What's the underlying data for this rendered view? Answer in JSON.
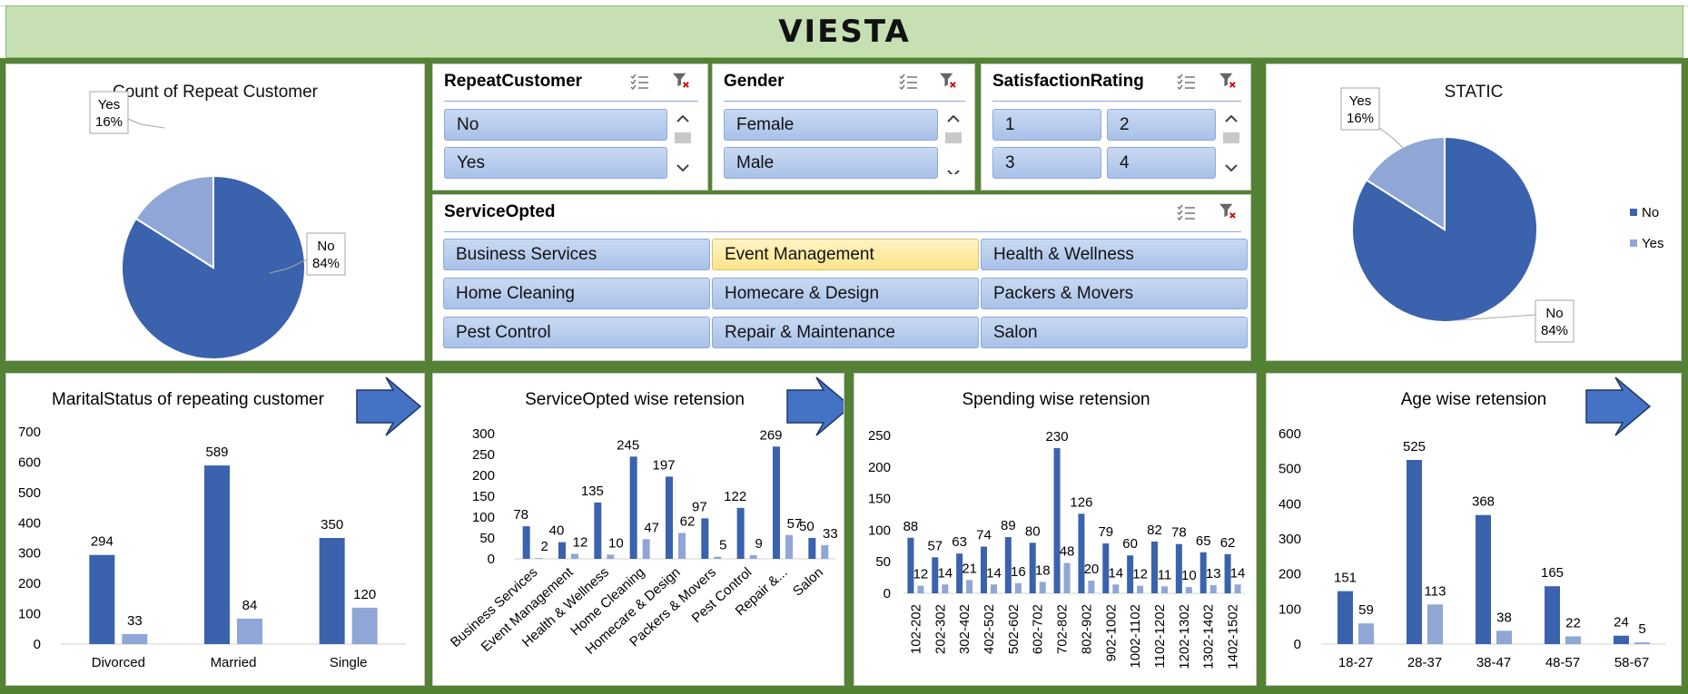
{
  "title": "VIESTA",
  "colors": {
    "no": "#3a62ad",
    "yes": "#8fa6d6",
    "green": "#548235",
    "title_bg": "#c6e0b4"
  },
  "pie_left": {
    "title": "Count of Repeat Customer"
  },
  "pie_right": {
    "title": "STATIC",
    "legend": [
      "No",
      "Yes"
    ]
  },
  "slicers": {
    "repeat": {
      "title": "RepeatCustomer",
      "items": [
        "No",
        "Yes"
      ]
    },
    "gender": {
      "title": "Gender",
      "items": [
        "Female",
        "Male"
      ]
    },
    "rating": {
      "title": "SatisfactionRating",
      "items": [
        "1",
        "2",
        "3",
        "4"
      ]
    },
    "service": {
      "title": "ServiceOpted",
      "selected": "Event Management",
      "items": [
        "Business Services",
        "Event Management",
        "Health & Wellness",
        "Home Cleaning",
        "Homecare & Design",
        "Packers & Movers",
        "Pest Control",
        "Repair & Maintenance",
        "Salon"
      ]
    }
  },
  "chart_data": [
    {
      "id": "pie_repeat",
      "type": "pie",
      "title": "Count of Repeat Customer",
      "slices": [
        {
          "label": "No",
          "value": 84,
          "display": "84%"
        },
        {
          "label": "Yes",
          "value": 16,
          "display": "16%"
        }
      ]
    },
    {
      "id": "pie_static",
      "type": "pie",
      "title": "STATIC",
      "slices": [
        {
          "label": "No",
          "value": 84,
          "display": "84%"
        },
        {
          "label": "Yes",
          "value": 16,
          "display": "16%"
        }
      ],
      "legend": "right"
    },
    {
      "id": "marital",
      "type": "bar",
      "title": "MaritalStatus of repeating customer",
      "categories": [
        "Divorced",
        "Married",
        "Single"
      ],
      "series": [
        {
          "values": [
            294,
            589,
            350
          ]
        },
        {
          "values": [
            33,
            84,
            120
          ]
        }
      ],
      "ylim": [
        0,
        700
      ],
      "yticks": [
        0,
        100,
        200,
        300,
        400,
        500,
        600,
        700
      ]
    },
    {
      "id": "service",
      "type": "bar",
      "title": "ServiceOpted wise retension",
      "categories": [
        "Business Services",
        "Event Management",
        "Health & Wellness",
        "Home Cleaning",
        "Homecare & Design",
        "Packers & Movers",
        "Pest Control",
        "Repair &...",
        "Salon"
      ],
      "series": [
        {
          "values": [
            78,
            40,
            135,
            245,
            197,
            97,
            122,
            269,
            50
          ]
        },
        {
          "values": [
            2,
            12,
            10,
            47,
            62,
            5,
            9,
            57,
            33
          ]
        }
      ],
      "ylim": [
        0,
        300
      ],
      "yticks": [
        0,
        50,
        100,
        150,
        200,
        250,
        300
      ]
    },
    {
      "id": "spending",
      "type": "bar",
      "title": "Spending wise retension",
      "categories": [
        "102-202",
        "202-302",
        "302-402",
        "402-502",
        "502-602",
        "602-702",
        "702-802",
        "802-902",
        "902-1002",
        "1002-1102",
        "1102-1202",
        "1202-1302",
        "1302-1402",
        "1402-1502"
      ],
      "series": [
        {
          "values": [
            88,
            57,
            63,
            74,
            89,
            80,
            230,
            126,
            79,
            60,
            82,
            78,
            65,
            62
          ]
        },
        {
          "values": [
            12,
            14,
            21,
            14,
            16,
            18,
            48,
            20,
            14,
            12,
            11,
            10,
            13,
            14
          ]
        }
      ],
      "ylim": [
        0,
        250
      ],
      "yticks": [
        0,
        50,
        100,
        150,
        200,
        250
      ]
    },
    {
      "id": "age",
      "type": "bar",
      "title": "Age wise retension",
      "categories": [
        "18-27",
        "28-37",
        "38-47",
        "48-57",
        "58-67"
      ],
      "series": [
        {
          "values": [
            151,
            525,
            368,
            165,
            24
          ]
        },
        {
          "values": [
            59,
            113,
            38,
            22,
            5
          ]
        }
      ],
      "ylim": [
        0,
        600
      ],
      "yticks": [
        0,
        100,
        200,
        300,
        400,
        500,
        600
      ]
    }
  ]
}
